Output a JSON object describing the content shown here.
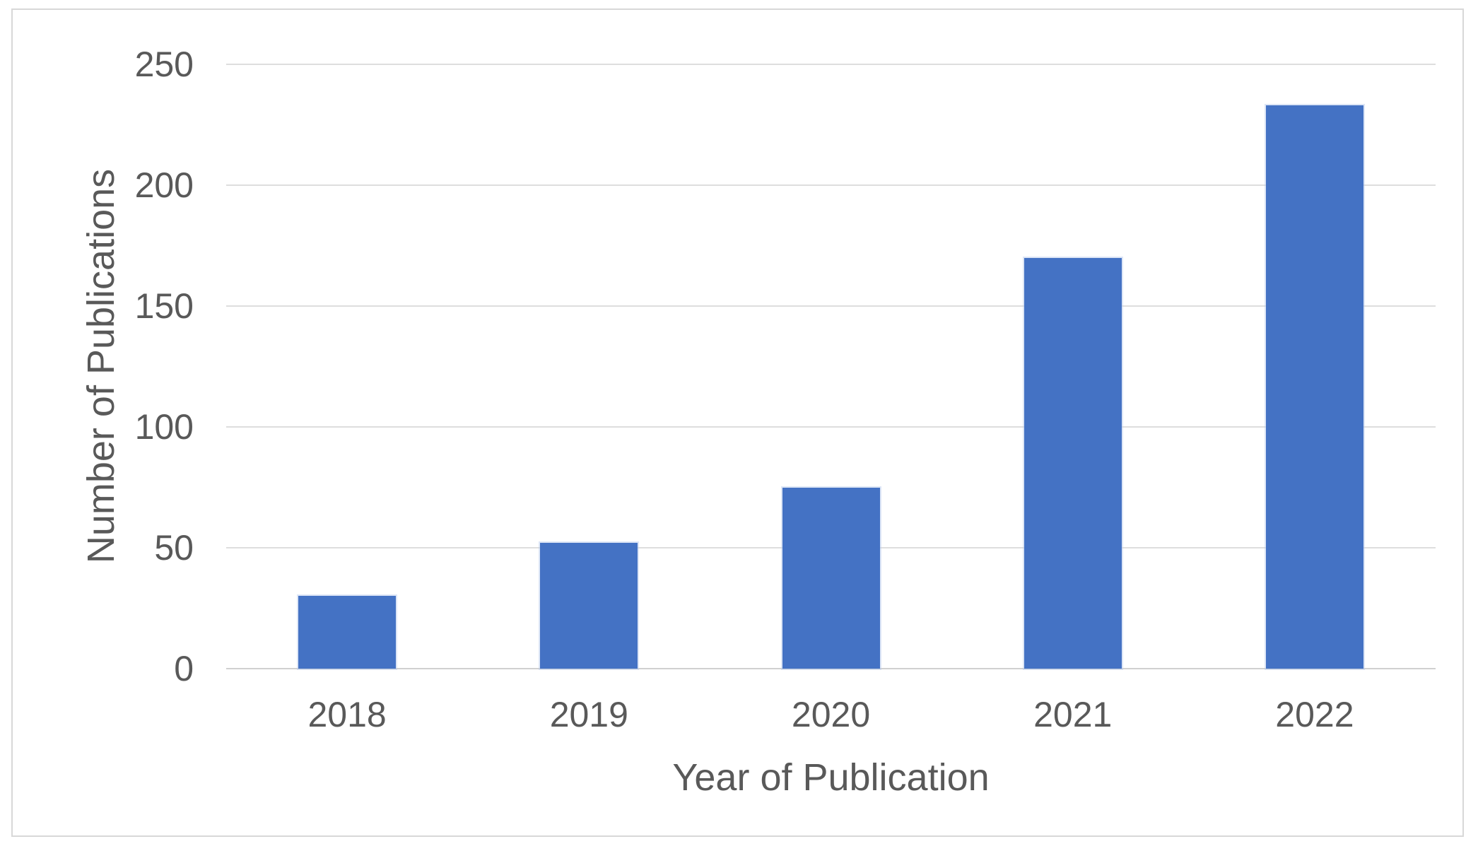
{
  "chart_data": {
    "type": "bar",
    "categories": [
      "2018",
      "2019",
      "2020",
      "2021",
      "2022"
    ],
    "values": [
      30,
      52,
      75,
      170,
      233
    ],
    "title": "",
    "xlabel": "Year of Publication",
    "ylabel": "Number of Publications",
    "yticks": [
      0,
      50,
      100,
      150,
      200,
      250
    ],
    "ylim": [
      0,
      250
    ],
    "grid": "horizontal",
    "legend": "none",
    "bar_color": "#4472c4",
    "gridline_color": "#dedede",
    "text_color": "#595959",
    "frame_color": "#d8d8d8"
  }
}
